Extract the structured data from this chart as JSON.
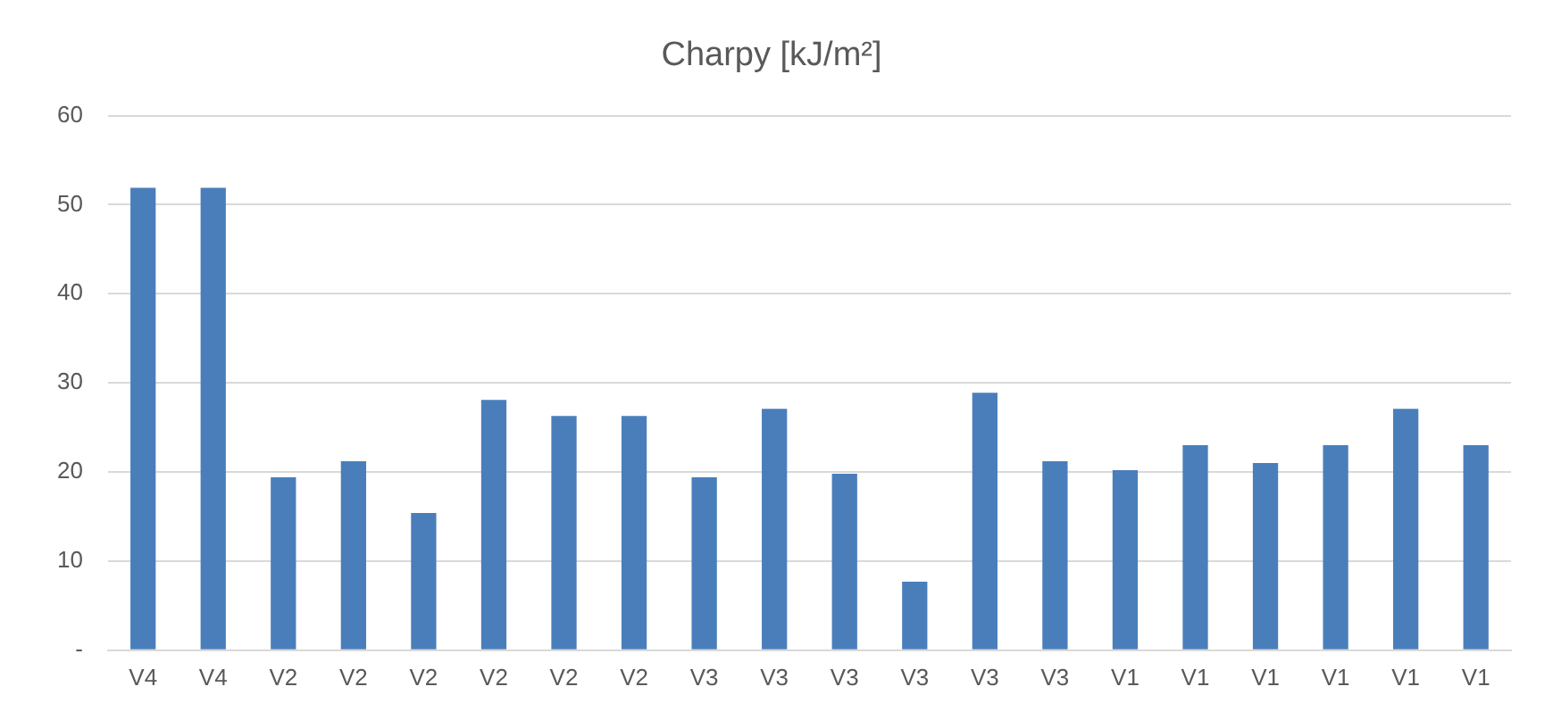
{
  "chart_data": {
    "type": "bar",
    "title": "Charpy [kJ/m²]",
    "categories": [
      "V4",
      "V4",
      "V2",
      "V2",
      "V2",
      "V2",
      "V2",
      "V2",
      "V3",
      "V3",
      "V3",
      "V3",
      "V3",
      "V3",
      "V1",
      "V1",
      "V1",
      "V1",
      "V1",
      "V1"
    ],
    "values": [
      51.9,
      51.9,
      19.4,
      21.2,
      15.4,
      28.1,
      26.3,
      26.3,
      19.4,
      27.1,
      19.8,
      7.7,
      28.9,
      21.2,
      20.2,
      23.0,
      21.0,
      23.0,
      27.1,
      23.0
    ],
    "color": "#4a7ebb",
    "ylim": [
      0,
      60
    ],
    "yticks": [
      {
        "value": 0,
        "label": "-"
      },
      10,
      20,
      30,
      40,
      50,
      60
    ],
    "grid": "y",
    "legend": false
  }
}
